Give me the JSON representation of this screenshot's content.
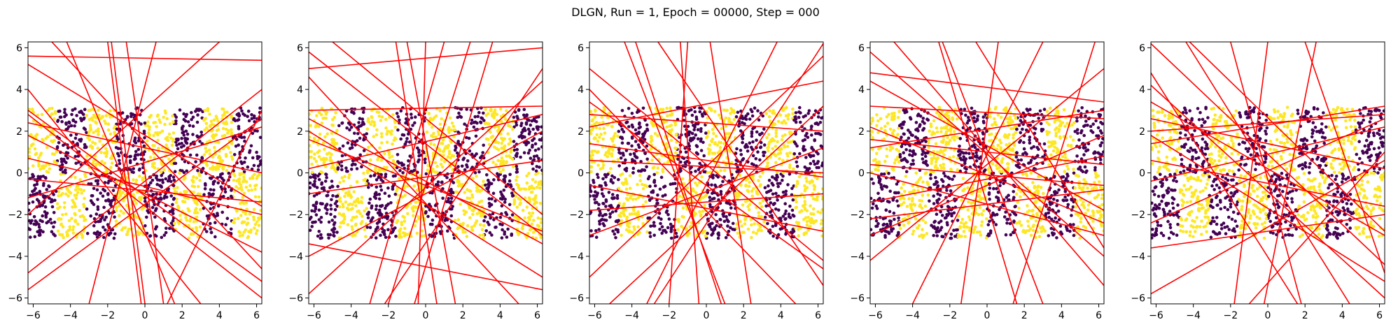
{
  "title": "DLGN, Run = 1, Epoch = 00000, Step = 000",
  "colors": {
    "class0": "#440154",
    "class1": "#fde725",
    "line": "#ff0000"
  },
  "chart_data": [
    {
      "type": "scatter",
      "xlim": [
        -6.28,
        6.28
      ],
      "ylim": [
        -6.28,
        6.28
      ],
      "xticks": [
        "-6",
        "-4",
        "-2",
        "0",
        "2",
        "4",
        "6"
      ],
      "yticks": [
        "-6",
        "-4",
        "-2",
        "0",
        "2",
        "4",
        "6"
      ],
      "data_region": {
        "x": [
          -6.28,
          6.28
        ],
        "y": [
          -3.14,
          3.14
        ]
      },
      "lines": [
        [
          [
            -6.28,
            5.6
          ],
          [
            6.28,
            5.4
          ]
        ],
        [
          [
            -6.28,
            2.8
          ],
          [
            6.28,
            -6.0
          ]
        ],
        [
          [
            -6.28,
            3.0
          ],
          [
            6.28,
            -5.2
          ]
        ],
        [
          [
            -6.28,
            5.2
          ],
          [
            6.28,
            -1.6
          ]
        ],
        [
          [
            -6.28,
            0.7
          ],
          [
            6.28,
            -2.0
          ]
        ],
        [
          [
            -6.28,
            -0.3
          ],
          [
            6.28,
            -1.4
          ]
        ],
        [
          [
            -6.28,
            -4.8
          ],
          [
            6.28,
            4.0
          ]
        ],
        [
          [
            -6.28,
            -5.6
          ],
          [
            6.28,
            2.6
          ]
        ],
        [
          [
            -4.2,
            6.28
          ],
          [
            1.6,
            -6.28
          ]
        ],
        [
          [
            -2.0,
            6.28
          ],
          [
            -0.2,
            -6.28
          ]
        ],
        [
          [
            -1.0,
            6.28
          ],
          [
            1.0,
            -6.28
          ]
        ],
        [
          [
            -6.28,
            -2.0
          ],
          [
            4.0,
            6.28
          ]
        ],
        [
          [
            -6.28,
            4.0
          ],
          [
            3.0,
            -6.28
          ]
        ],
        [
          [
            -6.28,
            -1.2
          ],
          [
            6.28,
            2.2
          ]
        ],
        [
          [
            -3.0,
            -6.28
          ],
          [
            0.6,
            6.28
          ]
        ],
        [
          [
            -6.28,
            1.8
          ],
          [
            6.28,
            -3.8
          ]
        ],
        [
          [
            1.2,
            -6.28
          ],
          [
            6.28,
            3.0
          ]
        ],
        [
          [
            -5.0,
            6.28
          ],
          [
            6.28,
            -4.6
          ]
        ],
        [
          [
            0.0,
            -6.28
          ],
          [
            -1.8,
            6.28
          ]
        ],
        [
          [
            -6.28,
            2.4
          ],
          [
            6.28,
            0.0
          ]
        ]
      ]
    },
    {
      "type": "scatter",
      "xlim": [
        -6.28,
        6.28
      ],
      "ylim": [
        -6.28,
        6.28
      ],
      "xticks": [
        "-6",
        "-4",
        "-2",
        "0",
        "2",
        "4",
        "6"
      ],
      "yticks": [
        "-6",
        "-4",
        "-2",
        "0",
        "2",
        "4",
        "6"
      ],
      "data_region": {
        "x": [
          -6.28,
          6.28
        ],
        "y": [
          -3.14,
          3.14
        ]
      },
      "lines": [
        [
          [
            -6.28,
            5.8
          ],
          [
            6.28,
            -3.0
          ]
        ],
        [
          [
            -6.28,
            3.0
          ],
          [
            6.28,
            3.2
          ]
        ],
        [
          [
            -6.28,
            2.6
          ],
          [
            6.28,
            -3.4
          ]
        ],
        [
          [
            -6.28,
            0.2
          ],
          [
            6.28,
            2.8
          ]
        ],
        [
          [
            -6.28,
            -3.4
          ],
          [
            6.28,
            -5.6
          ]
        ],
        [
          [
            -6.28,
            -4.0
          ],
          [
            6.28,
            2.0
          ]
        ],
        [
          [
            -5.0,
            6.28
          ],
          [
            6.28,
            -2.0
          ]
        ],
        [
          [
            -3.0,
            -6.28
          ],
          [
            1.0,
            6.28
          ]
        ],
        [
          [
            -1.6,
            6.28
          ],
          [
            0.6,
            -6.28
          ]
        ],
        [
          [
            0.0,
            6.28
          ],
          [
            -0.4,
            -6.28
          ]
        ],
        [
          [
            2.4,
            6.28
          ],
          [
            -2.0,
            -6.28
          ]
        ],
        [
          [
            -6.28,
            4.6
          ],
          [
            5.0,
            -6.28
          ]
        ],
        [
          [
            -2.2,
            -6.28
          ],
          [
            6.28,
            5.0
          ]
        ],
        [
          [
            -6.28,
            1.6
          ],
          [
            6.28,
            -2.8
          ]
        ],
        [
          [
            -6.28,
            -1.0
          ],
          [
            6.28,
            0.6
          ]
        ],
        [
          [
            1.6,
            -6.28
          ],
          [
            -1.0,
            6.28
          ]
        ],
        [
          [
            -6.28,
            5.0
          ],
          [
            6.28,
            6.0
          ]
        ],
        [
          [
            -6.28,
            2.0
          ],
          [
            6.28,
            -5.0
          ]
        ],
        [
          [
            3.6,
            6.28
          ],
          [
            -0.6,
            -6.28
          ]
        ],
        [
          [
            -6.28,
            -5.8
          ],
          [
            6.28,
            4.4
          ]
        ]
      ]
    },
    {
      "type": "scatter",
      "xlim": [
        -6.28,
        6.28
      ],
      "ylim": [
        -6.28,
        6.28
      ],
      "xticks": [
        "-6",
        "-4",
        "-2",
        "0",
        "2",
        "4",
        "6"
      ],
      "yticks": [
        "-6",
        "-4",
        "-2",
        "0",
        "2",
        "4",
        "6"
      ],
      "data_region": {
        "x": [
          -6.28,
          6.28
        ],
        "y": [
          -3.14,
          3.14
        ]
      },
      "lines": [
        [
          [
            -6.28,
            2.2
          ],
          [
            6.28,
            4.4
          ]
        ],
        [
          [
            -6.28,
            1.4
          ],
          [
            6.28,
            -0.2
          ]
        ],
        [
          [
            -6.28,
            -0.6
          ],
          [
            6.28,
            -2.8
          ]
        ],
        [
          [
            -6.28,
            -3.0
          ],
          [
            6.28,
            1.2
          ]
        ],
        [
          [
            -6.28,
            5.0
          ],
          [
            6.28,
            -4.2
          ]
        ],
        [
          [
            -6.28,
            -5.0
          ],
          [
            6.28,
            5.6
          ]
        ],
        [
          [
            -3.8,
            6.28
          ],
          [
            0.8,
            -6.28
          ]
        ],
        [
          [
            -1.0,
            6.28
          ],
          [
            -2.0,
            -6.28
          ]
        ],
        [
          [
            -0.4,
            -6.28
          ],
          [
            -1.4,
            6.28
          ]
        ],
        [
          [
            0.2,
            6.28
          ],
          [
            2.4,
            -6.28
          ]
        ],
        [
          [
            3.8,
            6.28
          ],
          [
            -3.2,
            -6.28
          ]
        ],
        [
          [
            -5.2,
            -6.28
          ],
          [
            6.28,
            3.2
          ]
        ],
        [
          [
            -6.28,
            3.4
          ],
          [
            6.28,
            -4.6
          ]
        ],
        [
          [
            -6.28,
            0.6
          ],
          [
            6.28,
            0.0
          ]
        ],
        [
          [
            -2.6,
            6.28
          ],
          [
            6.28,
            -5.4
          ]
        ],
        [
          [
            1.0,
            -6.28
          ],
          [
            -4.4,
            6.28
          ]
        ],
        [
          [
            -6.28,
            -1.8
          ],
          [
            6.28,
            -1.0
          ]
        ],
        [
          [
            -6.28,
            4.0
          ],
          [
            4.8,
            -6.28
          ]
        ],
        [
          [
            6.28,
            6.2
          ],
          [
            -2.8,
            -6.28
          ]
        ],
        [
          [
            -6.28,
            2.8
          ],
          [
            6.28,
            2.0
          ]
        ]
      ]
    },
    {
      "type": "scatter",
      "xlim": [
        -6.28,
        6.28
      ],
      "ylim": [
        -6.28,
        6.28
      ],
      "xticks": [
        "-6",
        "-4",
        "-2",
        "0",
        "2",
        "4",
        "6"
      ],
      "yticks": [
        "-6",
        "-4",
        "-2",
        "0",
        "2",
        "4",
        "6"
      ],
      "data_region": {
        "x": [
          -6.28,
          6.28
        ],
        "y": [
          -3.14,
          3.14
        ]
      },
      "lines": [
        [
          [
            -6.28,
            3.2
          ],
          [
            6.28,
            2.6
          ]
        ],
        [
          [
            -6.28,
            1.2
          ],
          [
            6.28,
            3.0
          ]
        ],
        [
          [
            -6.28,
            0.4
          ],
          [
            6.28,
            -0.6
          ]
        ],
        [
          [
            -6.28,
            -1.4
          ],
          [
            6.28,
            0.8
          ]
        ],
        [
          [
            -6.28,
            -3.0
          ],
          [
            6.28,
            1.8
          ]
        ],
        [
          [
            -6.28,
            4.4
          ],
          [
            6.28,
            -1.8
          ]
        ],
        [
          [
            -6.28,
            5.8
          ],
          [
            6.28,
            -4.0
          ]
        ],
        [
          [
            -6.28,
            -4.2
          ],
          [
            6.28,
            5.0
          ]
        ],
        [
          [
            -6.28,
            2.2
          ],
          [
            6.28,
            -2.4
          ]
        ],
        [
          [
            -4.0,
            -6.28
          ],
          [
            3.0,
            6.28
          ]
        ],
        [
          [
            -2.6,
            6.28
          ],
          [
            1.6,
            -6.28
          ]
        ],
        [
          [
            0.6,
            6.28
          ],
          [
            -1.4,
            -6.28
          ]
        ],
        [
          [
            -0.6,
            6.28
          ],
          [
            6.28,
            -3.6
          ]
        ],
        [
          [
            -6.28,
            -2.2
          ],
          [
            6.28,
            -0.8
          ]
        ],
        [
          [
            3.0,
            -6.28
          ],
          [
            -2.4,
            6.28
          ]
        ],
        [
          [
            -6.28,
            1.6
          ],
          [
            6.28,
            0.4
          ]
        ],
        [
          [
            -5.0,
            6.28
          ],
          [
            6.28,
            -5.4
          ]
        ],
        [
          [
            -6.28,
            4.8
          ],
          [
            6.28,
            3.4
          ]
        ],
        [
          [
            1.4,
            -6.28
          ],
          [
            5.8,
            6.28
          ]
        ],
        [
          [
            -6.28,
            0.0
          ],
          [
            6.28,
            -3.0
          ]
        ]
      ]
    },
    {
      "type": "scatter",
      "xlim": [
        -6.28,
        6.28
      ],
      "ylim": [
        -6.28,
        6.28
      ],
      "xticks": [
        "-6",
        "-4",
        "-2",
        "0",
        "2",
        "4",
        "6"
      ],
      "yticks": [
        "-6",
        "-4",
        "-2",
        "0",
        "2",
        "4",
        "6"
      ],
      "data_region": {
        "x": [
          -6.28,
          6.28
        ],
        "y": [
          -3.14,
          3.14
        ]
      },
      "lines": [
        [
          [
            -6.28,
            6.2
          ],
          [
            6.28,
            -4.4
          ]
        ],
        [
          [
            -6.28,
            3.4
          ],
          [
            6.28,
            -3.0
          ]
        ],
        [
          [
            -6.28,
            2.0
          ],
          [
            6.28,
            2.8
          ]
        ],
        [
          [
            -6.28,
            1.4
          ],
          [
            6.28,
            3.2
          ]
        ],
        [
          [
            -6.28,
            -0.4
          ],
          [
            6.28,
            2.2
          ]
        ],
        [
          [
            -6.28,
            -2.4
          ],
          [
            6.28,
            2.6
          ]
        ],
        [
          [
            -6.28,
            -5.8
          ],
          [
            6.28,
            0.6
          ]
        ],
        [
          [
            -6.28,
            0.6
          ],
          [
            6.28,
            -1.6
          ]
        ],
        [
          [
            -4.2,
            6.28
          ],
          [
            6.28,
            -2.8
          ]
        ],
        [
          [
            -2.0,
            6.28
          ],
          [
            1.8,
            -6.28
          ]
        ],
        [
          [
            0.0,
            6.28
          ],
          [
            -1.8,
            -6.28
          ]
        ],
        [
          [
            2.6,
            6.28
          ],
          [
            -0.2,
            -6.28
          ]
        ],
        [
          [
            -1.0,
            -6.28
          ],
          [
            6.28,
            1.0
          ]
        ],
        [
          [
            -6.28,
            4.2
          ],
          [
            6.28,
            -6.0
          ]
        ],
        [
          [
            -6.28,
            2.6
          ],
          [
            6.28,
            0.2
          ]
        ],
        [
          [
            4.4,
            -6.28
          ],
          [
            -4.4,
            6.28
          ]
        ],
        [
          [
            -6.28,
            -3.6
          ],
          [
            6.28,
            -2.0
          ]
        ],
        [
          [
            -6.28,
            4.8
          ],
          [
            1.6,
            -6.28
          ]
        ],
        [
          [
            2.0,
            6.28
          ],
          [
            6.28,
            -4.8
          ]
        ],
        [
          [
            -6.28,
            1.8
          ],
          [
            6.28,
            -5.2
          ]
        ]
      ]
    }
  ]
}
